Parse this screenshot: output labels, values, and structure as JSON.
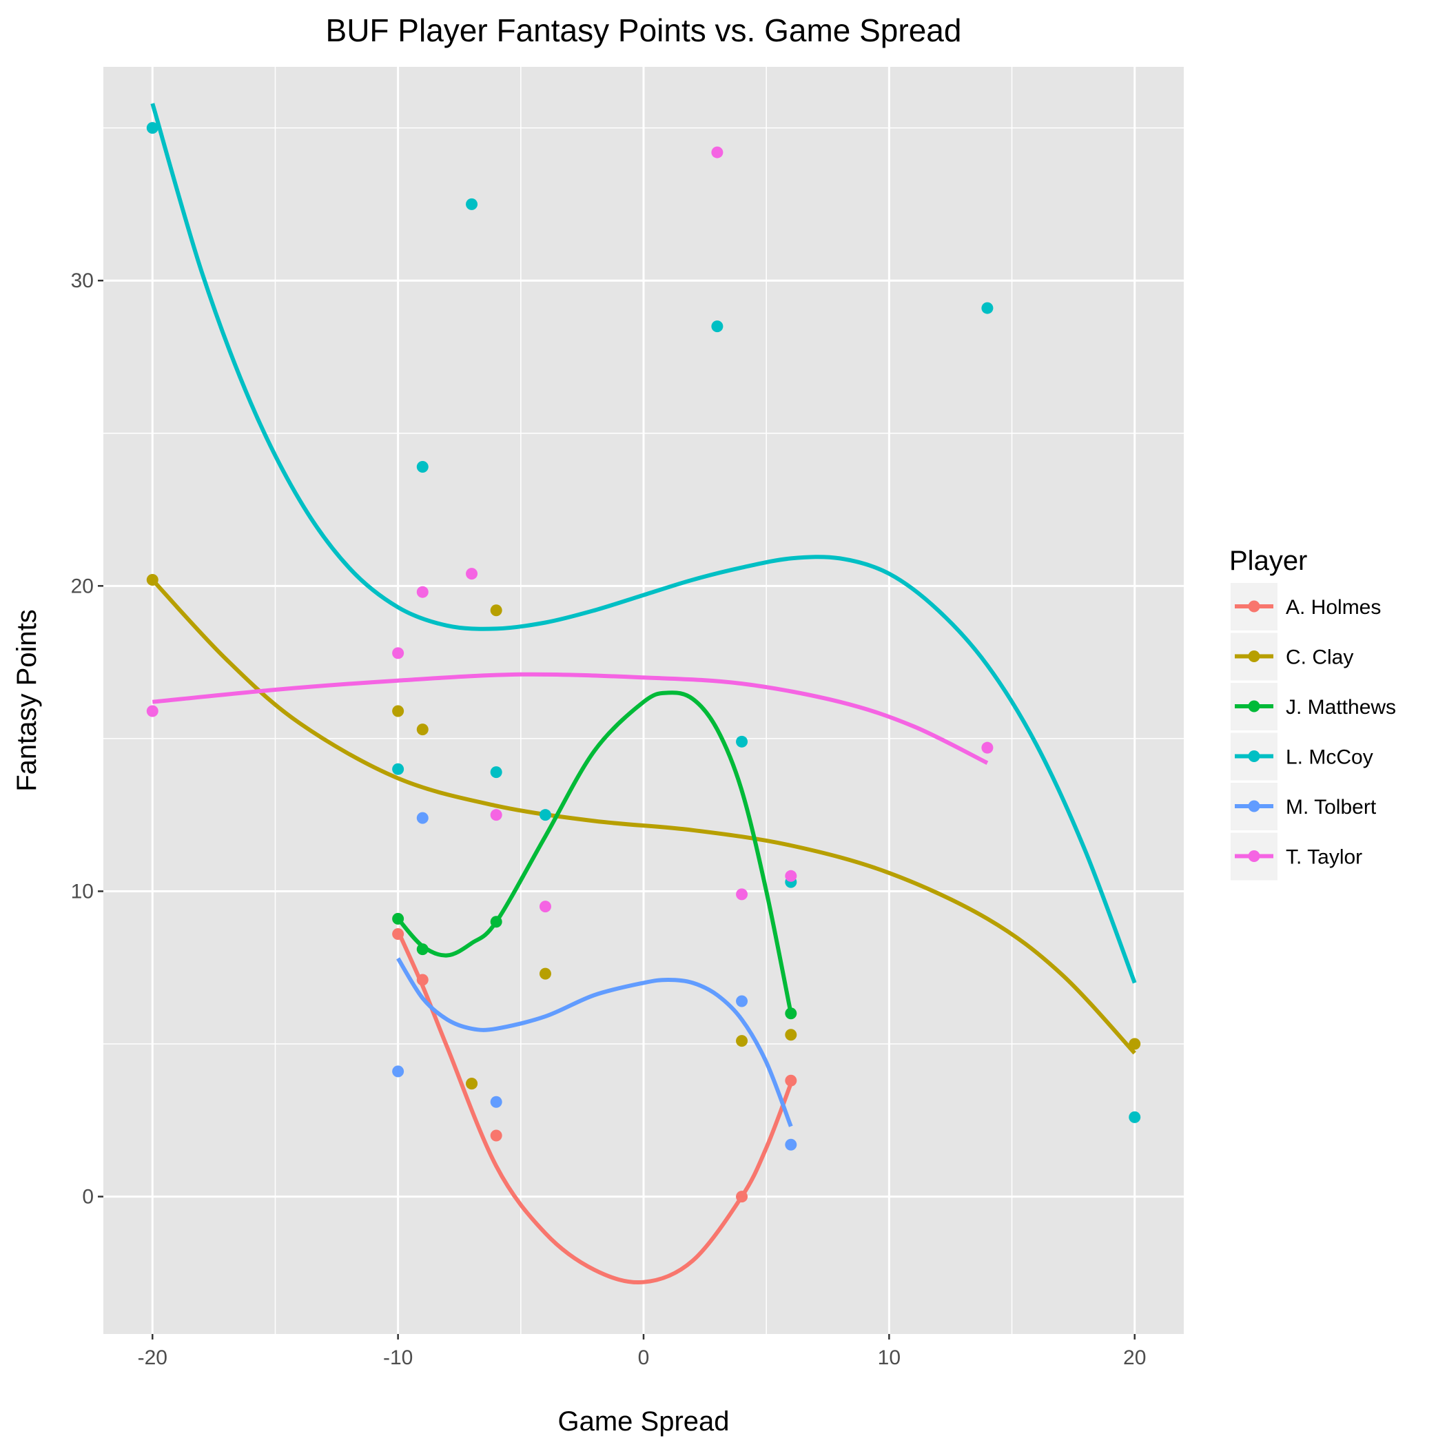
{
  "chart_data": {
    "type": "scatter",
    "title": "BUF Player Fantasy Points vs. Game Spread",
    "xlabel": "Game Spread",
    "ylabel": "Fantasy Points",
    "xlim": [
      -22,
      22
    ],
    "ylim": [
      -4.5,
      37
    ],
    "x_ticks": [
      -20,
      -10,
      0,
      10,
      20
    ],
    "x_tick_labels": [
      "-20",
      "-10",
      "0",
      "10",
      "20"
    ],
    "y_ticks": [
      0,
      10,
      20,
      30
    ],
    "y_tick_labels": [
      "0",
      "10",
      "20",
      "30"
    ],
    "x_minor_ticks": [
      -15,
      -5,
      5,
      15
    ],
    "y_minor_ticks": [
      5,
      15,
      25,
      35
    ],
    "grid": true,
    "panel_background": "#e5e5e5",
    "legend": {
      "title": "Player",
      "position": "right"
    },
    "series": [
      {
        "name": "A. Holmes",
        "color": "#f8766d",
        "points": [
          [
            -10,
            8.6
          ],
          [
            -9,
            7.1
          ],
          [
            -7,
            3.7
          ],
          [
            -6,
            2.0
          ],
          [
            4,
            0.0
          ],
          [
            6,
            3.8
          ]
        ],
        "smooth": [
          [
            -10,
            8.7
          ],
          [
            -9,
            6.9
          ],
          [
            -8,
            4.9
          ],
          [
            -6,
            1.0
          ],
          [
            -4,
            -1.2
          ],
          [
            -2,
            -2.4
          ],
          [
            0,
            -2.8
          ],
          [
            2,
            -2.1
          ],
          [
            4,
            0.0
          ],
          [
            5,
            1.6
          ],
          [
            6,
            3.7
          ]
        ]
      },
      {
        "name": "C. Clay",
        "color": "#b79f00",
        "points": [
          [
            -20,
            20.2
          ],
          [
            -10,
            15.9
          ],
          [
            -9,
            15.3
          ],
          [
            -7,
            3.7
          ],
          [
            -6,
            19.2
          ],
          [
            -4,
            7.3
          ],
          [
            4,
            5.1
          ],
          [
            6,
            5.3
          ],
          [
            20,
            5.0
          ]
        ],
        "smooth": [
          [
            -20,
            20.2
          ],
          [
            -17,
            17.6
          ],
          [
            -14,
            15.5
          ],
          [
            -10,
            13.7
          ],
          [
            -6,
            12.8
          ],
          [
            -2,
            12.3
          ],
          [
            2,
            12.0
          ],
          [
            6,
            11.5
          ],
          [
            10,
            10.6
          ],
          [
            14,
            9.1
          ],
          [
            17,
            7.3
          ],
          [
            20,
            4.7
          ]
        ]
      },
      {
        "name": "J. Matthews",
        "color": "#00ba38",
        "points": [
          [
            -10,
            9.1
          ],
          [
            -9,
            8.1
          ],
          [
            -6,
            9.0
          ],
          [
            6,
            6.0
          ]
        ],
        "smooth": [
          [
            -10,
            9.1
          ],
          [
            -9,
            8.2
          ],
          [
            -8,
            7.9
          ],
          [
            -7,
            8.3
          ],
          [
            -6,
            9.0
          ],
          [
            -4,
            11.8
          ],
          [
            -2,
            14.6
          ],
          [
            0,
            16.2
          ],
          [
            1,
            16.5
          ],
          [
            2,
            16.3
          ],
          [
            3,
            15.3
          ],
          [
            4,
            13.3
          ],
          [
            5,
            10.0
          ],
          [
            6,
            6.0
          ]
        ]
      },
      {
        "name": "L. McCoy",
        "color": "#00bfc4",
        "points": [
          [
            -20,
            35.0
          ],
          [
            -10,
            14.0
          ],
          [
            -9,
            23.9
          ],
          [
            -7,
            32.5
          ],
          [
            -6,
            13.9
          ],
          [
            -4,
            12.5
          ],
          [
            3,
            28.5
          ],
          [
            4,
            14.9
          ],
          [
            6,
            10.3
          ],
          [
            14,
            29.1
          ],
          [
            20,
            2.6
          ]
        ],
        "smooth": [
          [
            -20,
            35.8
          ],
          [
            -18,
            30.3
          ],
          [
            -16,
            26.0
          ],
          [
            -14,
            22.8
          ],
          [
            -12,
            20.6
          ],
          [
            -10,
            19.3
          ],
          [
            -8,
            18.7
          ],
          [
            -6,
            18.6
          ],
          [
            -4,
            18.8
          ],
          [
            -2,
            19.2
          ],
          [
            0,
            19.7
          ],
          [
            2,
            20.2
          ],
          [
            4,
            20.6
          ],
          [
            6,
            20.9
          ],
          [
            8,
            20.9
          ],
          [
            10,
            20.4
          ],
          [
            12,
            19.2
          ],
          [
            14,
            17.4
          ],
          [
            16,
            14.8
          ],
          [
            18,
            11.3
          ],
          [
            20,
            7.0
          ]
        ]
      },
      {
        "name": "M. Tolbert",
        "color": "#619cff",
        "points": [
          [
            -10,
            4.1
          ],
          [
            -9,
            12.4
          ],
          [
            -6,
            3.1
          ],
          [
            4,
            6.4
          ],
          [
            6,
            1.7
          ]
        ],
        "smooth": [
          [
            -10,
            7.8
          ],
          [
            -9,
            6.5
          ],
          [
            -8,
            5.8
          ],
          [
            -7,
            5.5
          ],
          [
            -6,
            5.5
          ],
          [
            -4,
            5.9
          ],
          [
            -2,
            6.6
          ],
          [
            0,
            7.0
          ],
          [
            1,
            7.1
          ],
          [
            2,
            7.0
          ],
          [
            3,
            6.6
          ],
          [
            4,
            5.8
          ],
          [
            5,
            4.4
          ],
          [
            6,
            2.3
          ]
        ]
      },
      {
        "name": "T. Taylor",
        "color": "#f564e3",
        "points": [
          [
            -20,
            15.9
          ],
          [
            -10,
            17.8
          ],
          [
            -9,
            19.8
          ],
          [
            -7,
            20.4
          ],
          [
            -6,
            12.5
          ],
          [
            -4,
            9.5
          ],
          [
            3,
            34.2
          ],
          [
            4,
            9.9
          ],
          [
            6,
            10.5
          ],
          [
            14,
            14.7
          ]
        ],
        "smooth": [
          [
            -20,
            16.2
          ],
          [
            -15,
            16.6
          ],
          [
            -10,
            16.9
          ],
          [
            -5,
            17.1
          ],
          [
            0,
            17.0
          ],
          [
            4,
            16.8
          ],
          [
            8,
            16.2
          ],
          [
            11,
            15.4
          ],
          [
            14,
            14.2
          ]
        ]
      }
    ]
  }
}
